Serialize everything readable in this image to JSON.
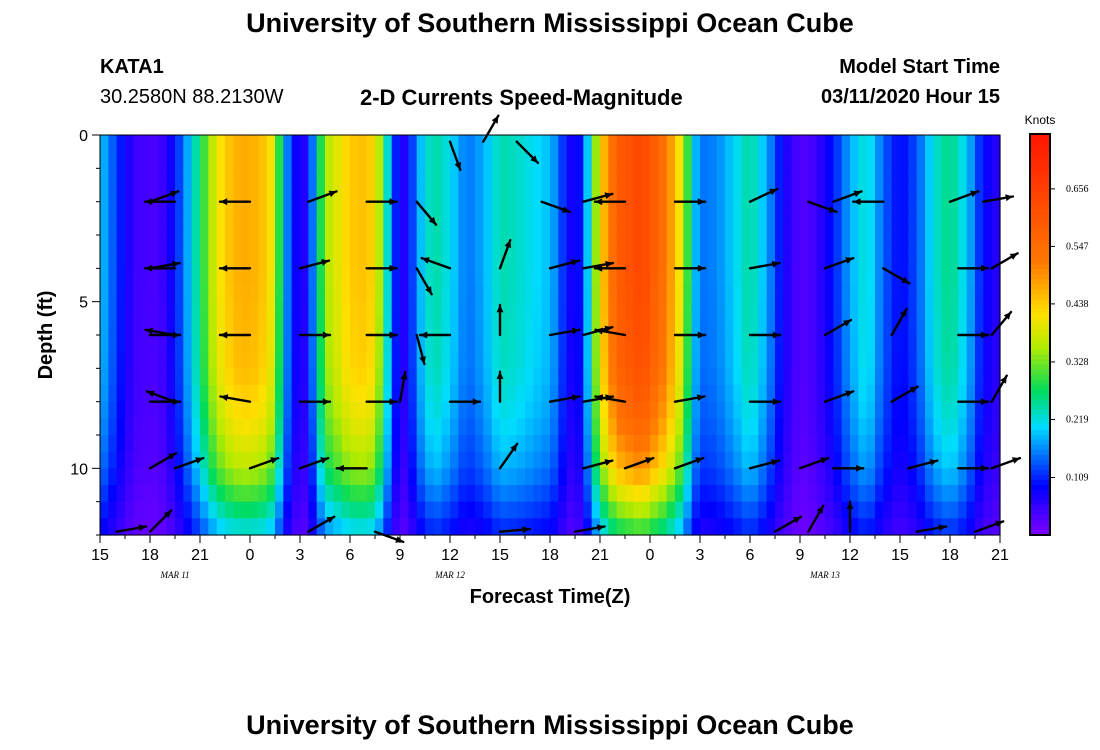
{
  "header": {
    "title": "University of Southern Mississippi Ocean Cube",
    "station": "KATA1",
    "coords": "30.2580N 88.2130W",
    "plot_title": "2-D Currents Speed-Magnitude",
    "model_label": "Model Start Time",
    "model_time": "03/11/2020 Hour 15"
  },
  "footer": {
    "title": "University of Southern Mississippi Ocean Cube"
  },
  "chart_data": {
    "type": "heatmap",
    "title": "2-D Currents Speed-Magnitude",
    "xlabel": "Forecast Time(Z)",
    "ylabel": "Depth (ft)",
    "x_ticks": [
      "15",
      "18",
      "21",
      "0",
      "3",
      "6",
      "9",
      "12",
      "15",
      "18",
      "21",
      "0",
      "3",
      "6",
      "9",
      "12",
      "15",
      "18",
      "21"
    ],
    "x_tick_hours": [
      0,
      3,
      6,
      9,
      12,
      15,
      18,
      21,
      24,
      27,
      30,
      33,
      36,
      39,
      42,
      45,
      48,
      51,
      54
    ],
    "date_labels": [
      {
        "label": "MAR 11",
        "hour": 4.5
      },
      {
        "label": "MAR 12",
        "hour": 21
      },
      {
        "label": "MAR 13",
        "hour": 43.5
      }
    ],
    "y_ticks": [
      "0",
      "5",
      "10"
    ],
    "y_tick_values": [
      0,
      5,
      10
    ],
    "x_range_hours": [
      0,
      54
    ],
    "y_range_ft": [
      0,
      12
    ],
    "colorbar": {
      "label": "Knots",
      "ticks": [
        0.109,
        0.219,
        0.328,
        0.438,
        0.547,
        0.656
      ],
      "range": [
        0.0,
        0.76
      ]
    },
    "speed_profile": [
      {
        "hour": 0.0,
        "speed": 0.2
      },
      {
        "hour": 0.5,
        "speed": 0.16
      },
      {
        "hour": 1.0,
        "speed": 0.12
      },
      {
        "hour": 2.0,
        "speed": 0.05
      },
      {
        "hour": 3.0,
        "speed": 0.04
      },
      {
        "hour": 3.5,
        "speed": 0.04
      },
      {
        "hour": 4.0,
        "speed": 0.06
      },
      {
        "hour": 4.5,
        "speed": 0.1
      },
      {
        "hour": 5.0,
        "speed": 0.15
      },
      {
        "hour": 5.5,
        "speed": 0.21
      },
      {
        "hour": 6.0,
        "speed": 0.27
      },
      {
        "hour": 7.0,
        "speed": 0.4
      },
      {
        "hour": 8.0,
        "speed": 0.46
      },
      {
        "hour": 9.0,
        "speed": 0.47
      },
      {
        "hour": 10.0,
        "speed": 0.44
      },
      {
        "hour": 10.5,
        "speed": 0.38
      },
      {
        "hour": 11.0,
        "speed": 0.2
      },
      {
        "hour": 11.5,
        "speed": 0.11
      },
      {
        "hour": 12.0,
        "speed": 0.06
      },
      {
        "hour": 12.5,
        "speed": 0.08
      },
      {
        "hour": 13.0,
        "speed": 0.22
      },
      {
        "hour": 13.5,
        "speed": 0.35
      },
      {
        "hour": 15.0,
        "speed": 0.44
      },
      {
        "hour": 16.0,
        "speed": 0.45
      },
      {
        "hour": 16.5,
        "speed": 0.42
      },
      {
        "hour": 17.0,
        "speed": 0.3
      },
      {
        "hour": 17.5,
        "speed": 0.15
      },
      {
        "hour": 18.0,
        "speed": 0.06
      },
      {
        "hour": 18.5,
        "speed": 0.08
      },
      {
        "hour": 19.0,
        "speed": 0.17
      },
      {
        "hour": 20.0,
        "speed": 0.25
      },
      {
        "hour": 21.0,
        "speed": 0.21
      },
      {
        "hour": 22.0,
        "speed": 0.15
      },
      {
        "hour": 23.0,
        "speed": 0.18
      },
      {
        "hour": 24.0,
        "speed": 0.24
      },
      {
        "hour": 25.0,
        "speed": 0.23
      },
      {
        "hour": 26.0,
        "speed": 0.21
      },
      {
        "hour": 27.0,
        "speed": 0.19
      },
      {
        "hour": 27.5,
        "speed": 0.15
      },
      {
        "hour": 28.0,
        "speed": 0.09
      },
      {
        "hour": 28.5,
        "speed": 0.07
      },
      {
        "hour": 29.0,
        "speed": 0.12
      },
      {
        "hour": 30.0,
        "speed": 0.42
      },
      {
        "hour": 31.0,
        "speed": 0.58
      },
      {
        "hour": 32.5,
        "speed": 0.64
      },
      {
        "hour": 34.0,
        "speed": 0.52
      },
      {
        "hour": 35.0,
        "speed": 0.38
      },
      {
        "hour": 35.5,
        "speed": 0.22
      },
      {
        "hour": 36.0,
        "speed": 0.15
      },
      {
        "hour": 37.0,
        "speed": 0.16
      },
      {
        "hour": 38.0,
        "speed": 0.2
      },
      {
        "hour": 39.0,
        "speed": 0.25
      },
      {
        "hour": 40.0,
        "speed": 0.18
      },
      {
        "hour": 41.0,
        "speed": 0.08
      },
      {
        "hour": 42.0,
        "speed": 0.03
      },
      {
        "hour": 43.0,
        "speed": 0.05
      },
      {
        "hour": 44.0,
        "speed": 0.1
      },
      {
        "hour": 45.0,
        "speed": 0.18
      },
      {
        "hour": 46.0,
        "speed": 0.23
      },
      {
        "hour": 47.0,
        "speed": 0.14
      },
      {
        "hour": 48.0,
        "speed": 0.09
      },
      {
        "hour": 49.0,
        "speed": 0.13
      },
      {
        "hour": 50.0,
        "speed": 0.22
      },
      {
        "hour": 51.0,
        "speed": 0.26
      },
      {
        "hour": 52.0,
        "speed": 0.2
      },
      {
        "hour": 53.0,
        "speed": 0.09
      },
      {
        "hour": 54.0,
        "speed": 0.06
      }
    ],
    "depth_factor": [
      {
        "depth": 0,
        "factor": 1.0
      },
      {
        "depth": 4,
        "factor": 1.0
      },
      {
        "depth": 7,
        "factor": 0.97
      },
      {
        "depth": 8.5,
        "factor": 0.9
      },
      {
        "depth": 10,
        "factor": 0.78
      },
      {
        "depth": 11,
        "factor": 0.62
      },
      {
        "depth": 12,
        "factor": 0.45
      }
    ],
    "vectors": [
      {
        "hour": 3.0,
        "depth": 2,
        "angle": -20
      },
      {
        "hour": 4.5,
        "depth": 2,
        "angle": 180
      },
      {
        "hour": 9.0,
        "depth": 2,
        "angle": 180
      },
      {
        "hour": 12.5,
        "depth": 2,
        "angle": -20
      },
      {
        "hour": 16.0,
        "depth": 2,
        "angle": 0
      },
      {
        "hour": 19.0,
        "depth": 2,
        "angle": 50
      },
      {
        "hour": 21.0,
        "depth": 0.2,
        "angle": 70
      },
      {
        "hour": 23.0,
        "depth": 0.2,
        "angle": -60
      },
      {
        "hour": 25.0,
        "depth": 0.2,
        "angle": 45
      },
      {
        "hour": 26.5,
        "depth": 2,
        "angle": 20
      },
      {
        "hour": 29.0,
        "depth": 2,
        "angle": -15
      },
      {
        "hour": 31.5,
        "depth": 2,
        "angle": 180
      },
      {
        "hour": 34.5,
        "depth": 2,
        "angle": 0
      },
      {
        "hour": 39.0,
        "depth": 2,
        "angle": -25
      },
      {
        "hour": 42.5,
        "depth": 2,
        "angle": 20
      },
      {
        "hour": 44.0,
        "depth": 2,
        "angle": -20
      },
      {
        "hour": 47.0,
        "depth": 2,
        "angle": 180
      },
      {
        "hour": 51.0,
        "depth": 2,
        "angle": -20
      },
      {
        "hour": 53.0,
        "depth": 2,
        "angle": -10
      },
      {
        "hour": 3.0,
        "depth": 4,
        "angle": -10
      },
      {
        "hour": 4.5,
        "depth": 4,
        "angle": 180
      },
      {
        "hour": 9.0,
        "depth": 4,
        "angle": 180
      },
      {
        "hour": 12.0,
        "depth": 4,
        "angle": -15
      },
      {
        "hour": 16.0,
        "depth": 4,
        "angle": 0
      },
      {
        "hour": 19.0,
        "depth": 4,
        "angle": 60
      },
      {
        "hour": 21.0,
        "depth": 4,
        "angle": 200
      },
      {
        "hour": 24.0,
        "depth": 4,
        "angle": -70
      },
      {
        "hour": 27.0,
        "depth": 4,
        "angle": -15
      },
      {
        "hour": 29.0,
        "depth": 4,
        "angle": -10
      },
      {
        "hour": 31.5,
        "depth": 4,
        "angle": 180
      },
      {
        "hour": 34.5,
        "depth": 4,
        "angle": 0
      },
      {
        "hour": 39.0,
        "depth": 4,
        "angle": -10
      },
      {
        "hour": 43.5,
        "depth": 4,
        "angle": -20
      },
      {
        "hour": 47.0,
        "depth": 4,
        "angle": 30
      },
      {
        "hour": 51.5,
        "depth": 4,
        "angle": 0
      },
      {
        "hour": 53.5,
        "depth": 4,
        "angle": -30
      },
      {
        "hour": 3.0,
        "depth": 6,
        "angle": 0
      },
      {
        "hour": 4.5,
        "depth": 6,
        "angle": 190
      },
      {
        "hour": 9.0,
        "depth": 6,
        "angle": 180
      },
      {
        "hour": 12.0,
        "depth": 6,
        "angle": 0
      },
      {
        "hour": 16.0,
        "depth": 6,
        "angle": 0
      },
      {
        "hour": 19.0,
        "depth": 6,
        "angle": 75
      },
      {
        "hour": 21.0,
        "depth": 6,
        "angle": 180
      },
      {
        "hour": 24.0,
        "depth": 6,
        "angle": -90
      },
      {
        "hour": 27.0,
        "depth": 6,
        "angle": -10
      },
      {
        "hour": 29.0,
        "depth": 6,
        "angle": -15
      },
      {
        "hour": 31.5,
        "depth": 6,
        "angle": 190
      },
      {
        "hour": 34.5,
        "depth": 6,
        "angle": 0
      },
      {
        "hour": 39.0,
        "depth": 6,
        "angle": 0
      },
      {
        "hour": 43.5,
        "depth": 6,
        "angle": -30
      },
      {
        "hour": 47.5,
        "depth": 6,
        "angle": -60
      },
      {
        "hour": 51.5,
        "depth": 6,
        "angle": 0
      },
      {
        "hour": 53.5,
        "depth": 6,
        "angle": -50
      },
      {
        "hour": 3.0,
        "depth": 8,
        "angle": 0
      },
      {
        "hour": 4.5,
        "depth": 8,
        "angle": 200
      },
      {
        "hour": 9.0,
        "depth": 8,
        "angle": 190
      },
      {
        "hour": 12.0,
        "depth": 8,
        "angle": 0
      },
      {
        "hour": 16.0,
        "depth": 8,
        "angle": 0
      },
      {
        "hour": 18.0,
        "depth": 8,
        "angle": -80
      },
      {
        "hour": 21.0,
        "depth": 8,
        "angle": 0
      },
      {
        "hour": 24.0,
        "depth": 8,
        "angle": -90
      },
      {
        "hour": 27.0,
        "depth": 8,
        "angle": -10
      },
      {
        "hour": 29.0,
        "depth": 8,
        "angle": -10
      },
      {
        "hour": 31.5,
        "depth": 8,
        "angle": 190
      },
      {
        "hour": 34.5,
        "depth": 8,
        "angle": -10
      },
      {
        "hour": 39.0,
        "depth": 8,
        "angle": 0
      },
      {
        "hour": 43.5,
        "depth": 8,
        "angle": -20
      },
      {
        "hour": 47.5,
        "depth": 8,
        "angle": -30
      },
      {
        "hour": 51.5,
        "depth": 8,
        "angle": 0
      },
      {
        "hour": 53.5,
        "depth": 8,
        "angle": -60
      },
      {
        "hour": 3.0,
        "depth": 10,
        "angle": -30
      },
      {
        "hour": 4.5,
        "depth": 10,
        "angle": -20
      },
      {
        "hour": 9.0,
        "depth": 10,
        "angle": -20
      },
      {
        "hour": 12.0,
        "depth": 10,
        "angle": -20
      },
      {
        "hour": 16.0,
        "depth": 10,
        "angle": 180
      },
      {
        "hour": 24.0,
        "depth": 10,
        "angle": -55
      },
      {
        "hour": 29.0,
        "depth": 10,
        "angle": -15
      },
      {
        "hour": 31.5,
        "depth": 10,
        "angle": -20
      },
      {
        "hour": 34.5,
        "depth": 10,
        "angle": -20
      },
      {
        "hour": 39.0,
        "depth": 10,
        "angle": -15
      },
      {
        "hour": 42.0,
        "depth": 10,
        "angle": -20
      },
      {
        "hour": 44.0,
        "depth": 10,
        "angle": 0
      },
      {
        "hour": 48.5,
        "depth": 10,
        "angle": -15
      },
      {
        "hour": 51.5,
        "depth": 10,
        "angle": 0
      },
      {
        "hour": 53.5,
        "depth": 10,
        "angle": -20
      },
      {
        "hour": 1.0,
        "depth": 11.9,
        "angle": -10
      },
      {
        "hour": 3.0,
        "depth": 11.9,
        "angle": -45
      },
      {
        "hour": 12.5,
        "depth": 11.9,
        "angle": -30
      },
      {
        "hour": 16.5,
        "depth": 11.9,
        "angle": 20
      },
      {
        "hour": 24.0,
        "depth": 11.9,
        "angle": -5
      },
      {
        "hour": 28.5,
        "depth": 11.9,
        "angle": -10
      },
      {
        "hour": 40.5,
        "depth": 11.9,
        "angle": -30
      },
      {
        "hour": 42.5,
        "depth": 11.9,
        "angle": -60
      },
      {
        "hour": 45.0,
        "depth": 11.9,
        "angle": -90
      },
      {
        "hour": 49.0,
        "depth": 11.9,
        "angle": -10
      },
      {
        "hour": 52.5,
        "depth": 11.9,
        "angle": -20
      }
    ]
  }
}
